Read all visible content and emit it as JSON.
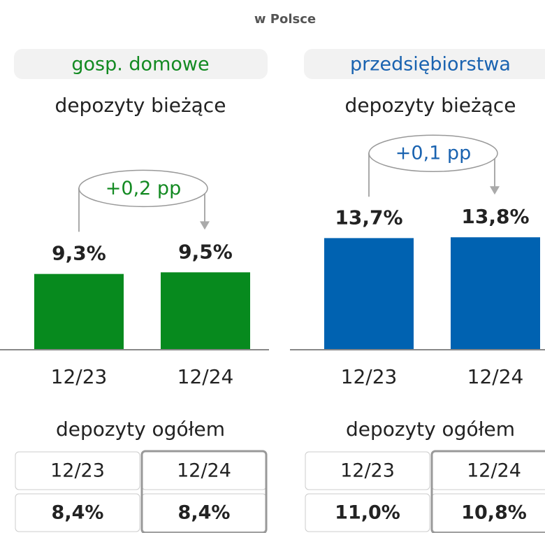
{
  "title": "w Polsce",
  "chart_data": [
    {
      "type": "bar",
      "segment": "gosp. domowe",
      "subtitle": "depozyty bieżące",
      "categories": [
        "12/23",
        "12/24"
      ],
      "values": [
        9.3,
        9.5
      ],
      "value_labels": [
        "9,3%",
        "9,5%"
      ],
      "color": "#078a1e",
      "segment_color": "#138a22",
      "change": "+0,2 pp",
      "total": {
        "title": "depozyty ogółem",
        "categories": [
          "12/23",
          "12/24"
        ],
        "values": [
          8.4,
          8.4
        ],
        "value_labels": [
          "8,4%",
          "8,4%"
        ]
      }
    },
    {
      "type": "bar",
      "segment": "przedsiębiorstwa",
      "subtitle": "depozyty bieżące",
      "categories": [
        "12/23",
        "12/24"
      ],
      "values": [
        13.7,
        13.8
      ],
      "value_labels": [
        "13,7%",
        "13,8%"
      ],
      "color": "#0062b1",
      "segment_color": "#1a63b0",
      "change": "+0,1 pp",
      "total": {
        "title": "depozyty ogółem",
        "categories": [
          "12/23",
          "12/24"
        ],
        "values": [
          11.0,
          10.8
        ],
        "value_labels": [
          "11,0%",
          "10,8%"
        ]
      }
    }
  ]
}
